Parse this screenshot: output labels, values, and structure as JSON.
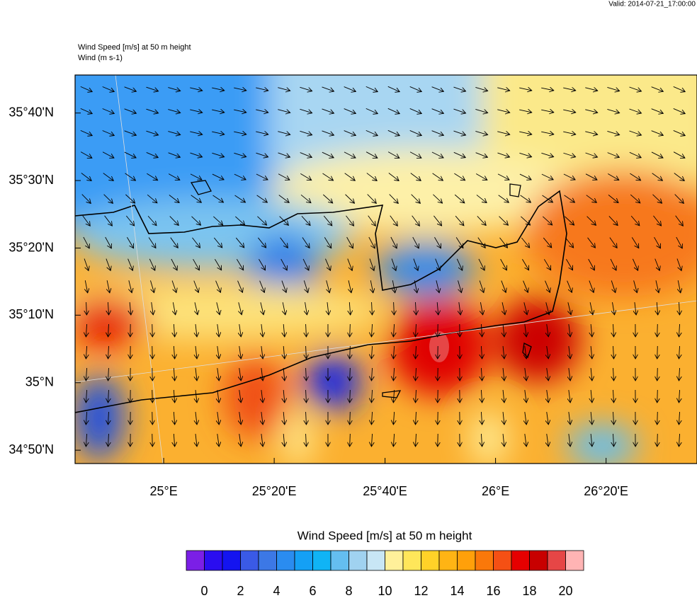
{
  "header": {
    "valid": "Valid: 2014-07-21_17:00:00",
    "title": "Wind Speed [m/s] at 50 m height",
    "subtitle": "Wind   (m s-1)"
  },
  "map": {
    "xlim": [
      24.733,
      26.607
    ],
    "ylim": [
      34.8,
      35.761
    ],
    "xticks": [
      {
        "value": 25,
        "label": "25°E"
      },
      {
        "value": 25.333,
        "label": "25°20'E"
      },
      {
        "value": 25.667,
        "label": "25°40'E"
      },
      {
        "value": 26,
        "label": "26°E"
      },
      {
        "value": 26.333,
        "label": "26°20'E"
      }
    ],
    "yticks": [
      {
        "value": 35.667,
        "label": "35°40'N"
      },
      {
        "value": 35.5,
        "label": "35°30'N"
      },
      {
        "value": 35.333,
        "label": "35°20'N"
      },
      {
        "value": 35.167,
        "label": "35°10'N"
      },
      {
        "value": 35,
        "label": "35°N"
      },
      {
        "value": 34.833,
        "label": "34°50'N"
      }
    ]
  },
  "colorbar": {
    "title": "Wind Speed [m/s] at 50 m height",
    "lim": [
      -1,
      21
    ],
    "colors": [
      "#7b1fe6",
      "#2a0df0",
      "#1414f0",
      "#3a5ae6",
      "#3c78e6",
      "#2a8cf0",
      "#14a0f5",
      "#10b4f5",
      "#64bef0",
      "#a0d2f0",
      "#c8e6f5",
      "#fff09a",
      "#ffe65a",
      "#ffd228",
      "#ffb414",
      "#ffa00a",
      "#fa780a",
      "#f55014",
      "#e60000",
      "#c80000",
      "#e64646",
      "#ffb4b4"
    ],
    "ticks": [
      0,
      2,
      4,
      6,
      8,
      10,
      12,
      14,
      16,
      18,
      20
    ]
  }
}
